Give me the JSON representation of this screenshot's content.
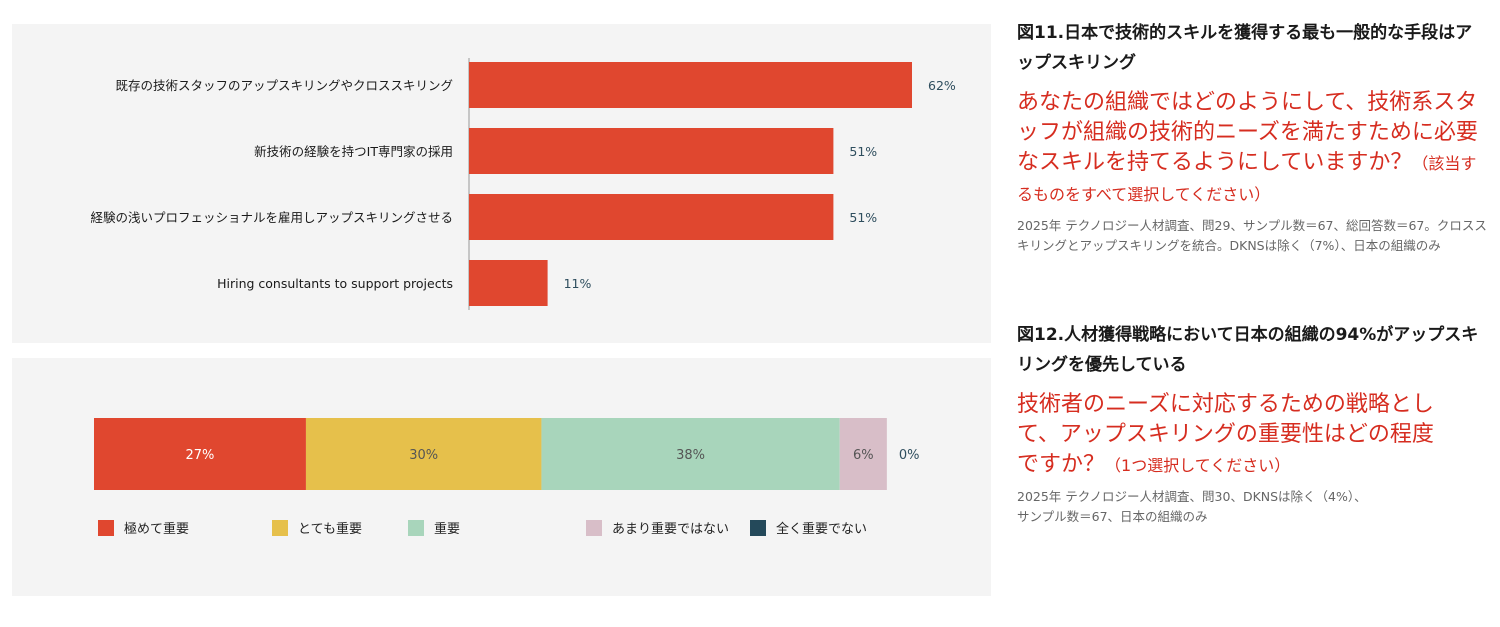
{
  "figure11": {
    "title": "図11.日本で技術的スキルを獲得する最も一般的な手段はアップスキリング",
    "question": "あなたの組織ではどのようにして、技術系スタッフが組織の技術的ニーズを満たすために必要なスキルを持てるようにしていますか？",
    "question_note": "（該当するものをすべて選択してください）",
    "note": "2025年 テクノロジー人材調査、問29、サンプル数＝67、総回答数＝67。クロススキリングとアップスキリングを統合。DKNSは除く（7%）、日本の組織のみ"
  },
  "figure12": {
    "title": "図12.人材獲得戦略において日本の組織の94%がアップスキリングを優先している",
    "question": "技術者のニーズに対応するための戦略として、アップスキリングの重要性はどの程度ですか？",
    "question_note": "（1つ選択してください）",
    "note": "2025年 テクノロジー人材調査、問30、DKNSは除く（4%）、サンプル数＝67、日本の組織のみ"
  },
  "colors": {
    "red": "#e0472f",
    "yellow": "#e6c04b",
    "green": "#a8d5bb",
    "pink": "#d8bec8",
    "navy": "#24495a",
    "value_text": "#2f4e5e"
  },
  "chart_data": [
    {
      "type": "bar",
      "orientation": "horizontal",
      "categories": [
        "既存の技術スタッフのアップスキリングやクロススキリング",
        "新技術の経験を持つIT専門家の採用",
        "経験の浅いプロフェッショナルを雇用しアップスキリングさせる",
        "Hiring consultants to support projects"
      ],
      "values": [
        62,
        51,
        51,
        11
      ],
      "value_labels": [
        "62%",
        "51%",
        "51%",
        "11%"
      ],
      "xlim": [
        0,
        100
      ],
      "color": "#e0472f"
    },
    {
      "type": "bar",
      "orientation": "horizontal",
      "stacked": true,
      "series": [
        {
          "name": "極めて重要",
          "values": [
            27
          ],
          "label": "27%",
          "color": "#e0472f"
        },
        {
          "name": "とても重要",
          "values": [
            30
          ],
          "label": "30%",
          "color": "#e6c04b"
        },
        {
          "name": "重要",
          "values": [
            38
          ],
          "label": "38%",
          "color": "#a8d5bb"
        },
        {
          "name": "あまり重要ではない",
          "values": [
            6
          ],
          "label": "6%",
          "color": "#d8bec8"
        },
        {
          "name": "全く重要でない",
          "values": [
            0
          ],
          "label": "0%",
          "color": "#24495a"
        }
      ],
      "xlim": [
        0,
        100
      ],
      "legend_position": "bottom"
    }
  ]
}
